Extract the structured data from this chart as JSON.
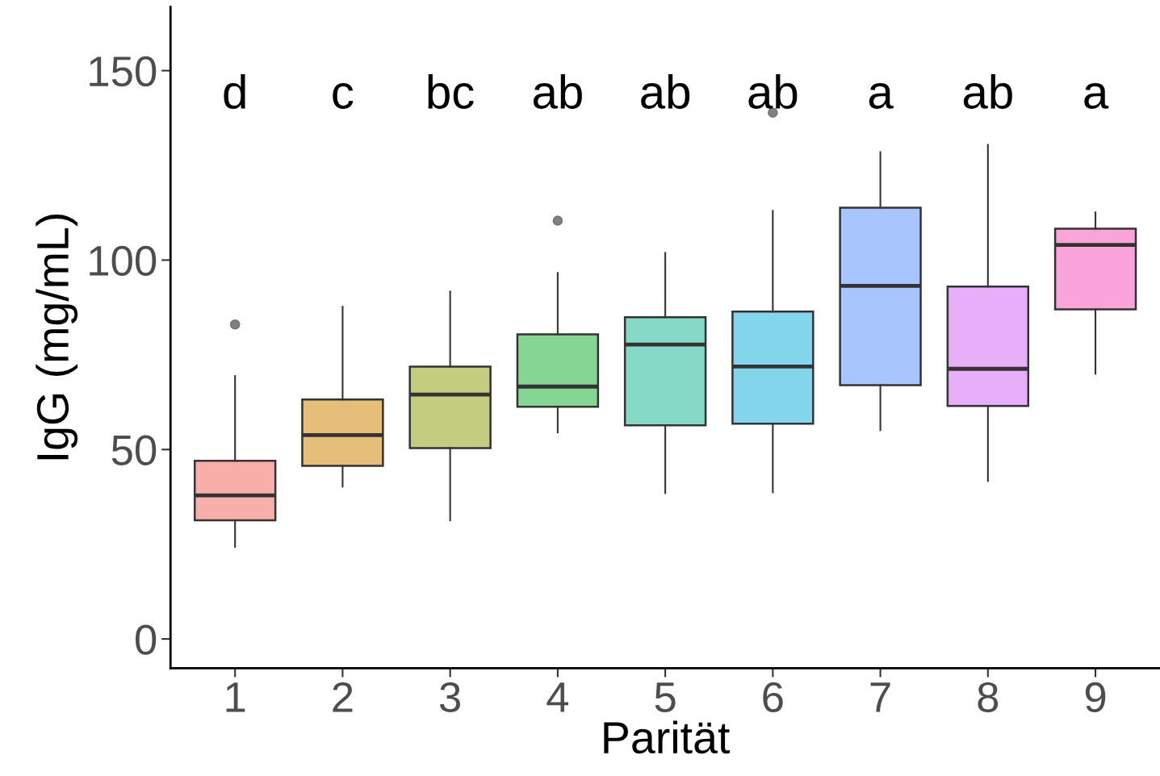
{
  "chart_data": {
    "type": "box",
    "xlabel": "Parität",
    "ylabel": "IgG (mg/mL)",
    "categories": [
      "1",
      "2",
      "3",
      "4",
      "5",
      "6",
      "7",
      "8",
      "9"
    ],
    "colors": [
      "#f9afa9",
      "#e5be7a",
      "#c4cd7f",
      "#85d594",
      "#85d9c6",
      "#83d5ec",
      "#a8c6fd",
      "#e7aefa",
      "#fba3db"
    ],
    "boxes": [
      {
        "low": 24.3,
        "q1": 31.3,
        "median": 37.9,
        "q3": 47.0,
        "high": 69.4,
        "outliers": [
          83.0
        ]
      },
      {
        "low": 40.2,
        "q1": 45.7,
        "median": 53.8,
        "q3": 63.2,
        "high": 87.7
      },
      {
        "low": 31.3,
        "q1": 50.4,
        "median": 64.5,
        "q3": 71.9,
        "high": 91.7
      },
      {
        "low": 54.5,
        "q1": 61.3,
        "median": 66.6,
        "q3": 80.4,
        "high": 96.6,
        "outliers": [
          110.4
        ]
      },
      {
        "low": 38.5,
        "q1": 56.4,
        "median": 77.7,
        "q3": 84.9,
        "high": 101.9
      },
      {
        "low": 38.7,
        "q1": 56.8,
        "median": 71.9,
        "q3": 86.4,
        "high": 113.0,
        "outliers": [
          138.9
        ]
      },
      {
        "low": 55.1,
        "q1": 67.0,
        "median": 93.2,
        "q3": 113.8,
        "high": 128.5
      },
      {
        "low": 41.7,
        "q1": 61.5,
        "median": 71.3,
        "q3": 93.0,
        "high": 130.4
      },
      {
        "low": 70.0,
        "q1": 87.0,
        "median": 104.0,
        "q3": 108.3,
        "high": 112.6
      }
    ],
    "annotations": [
      "d",
      "c",
      "bc",
      "ab",
      "ab",
      "ab",
      "a",
      "ab",
      "a"
    ],
    "ylim": [
      -7.7,
      166.8
    ],
    "yticks": [
      0,
      50,
      100,
      150
    ],
    "grid": false,
    "legend": false
  }
}
